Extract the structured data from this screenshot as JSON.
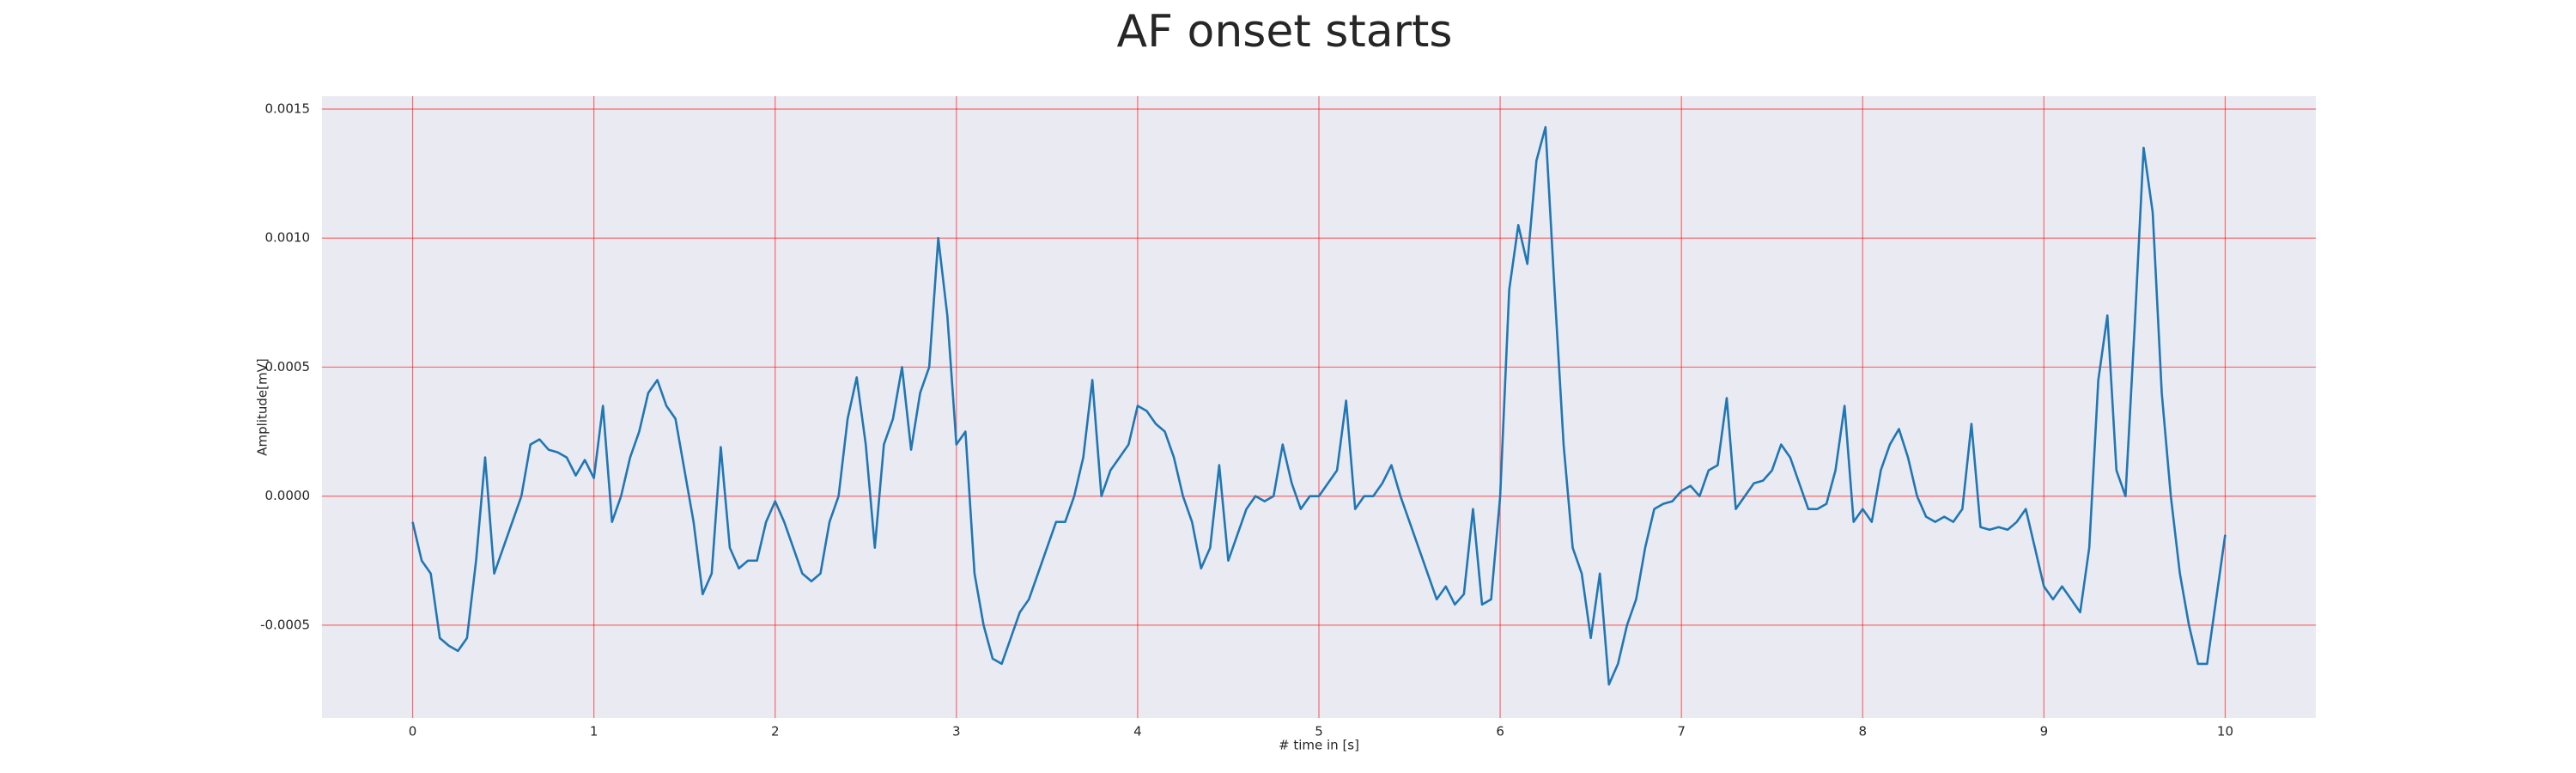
{
  "chart_data": {
    "type": "line",
    "title": "AF onset starts",
    "xlabel": "# time in [s]",
    "ylabel": "Amplitude[mV]",
    "x": [
      0,
      0.05,
      0.1,
      0.15,
      0.2,
      0.25,
      0.3,
      0.35,
      0.4,
      0.45,
      0.5,
      0.55,
      0.6,
      0.65,
      0.7,
      0.75,
      0.8,
      0.85,
      0.9,
      0.95,
      1,
      1.05,
      1.1,
      1.15,
      1.2,
      1.25,
      1.3,
      1.35,
      1.4,
      1.45,
      1.5,
      1.55,
      1.6,
      1.65,
      1.7,
      1.75,
      1.8,
      1.85,
      1.9,
      1.95,
      2,
      2.05,
      2.1,
      2.15,
      2.2,
      2.25,
      2.3,
      2.35,
      2.4,
      2.45,
      2.5,
      2.55,
      2.6,
      2.65,
      2.7,
      2.75,
      2.8,
      2.85,
      2.9,
      2.95,
      3,
      3.05,
      3.1,
      3.15,
      3.2,
      3.25,
      3.3,
      3.35,
      3.4,
      3.45,
      3.5,
      3.55,
      3.6,
      3.65,
      3.7,
      3.75,
      3.8,
      3.85,
      3.9,
      3.95,
      4,
      4.05,
      4.1,
      4.15,
      4.2,
      4.25,
      4.3,
      4.35,
      4.4,
      4.45,
      4.5,
      4.55,
      4.6,
      4.65,
      4.7,
      4.75,
      4.8,
      4.85,
      4.9,
      4.95,
      5,
      5.05,
      5.1,
      5.15,
      5.2,
      5.25,
      5.3,
      5.35,
      5.4,
      5.45,
      5.5,
      5.55,
      5.6,
      5.65,
      5.7,
      5.75,
      5.8,
      5.85,
      5.9,
      5.95,
      6,
      6.05,
      6.1,
      6.15,
      6.2,
      6.25,
      6.3,
      6.35,
      6.4,
      6.45,
      6.5,
      6.55,
      6.6,
      6.65,
      6.7,
      6.75,
      6.8,
      6.85,
      6.9,
      6.95,
      7,
      7.05,
      7.1,
      7.15,
      7.2,
      7.25,
      7.3,
      7.35,
      7.4,
      7.45,
      7.5,
      7.55,
      7.6,
      7.65,
      7.7,
      7.75,
      7.8,
      7.85,
      7.9,
      7.95,
      8,
      8.05,
      8.1,
      8.15,
      8.2,
      8.25,
      8.3,
      8.35,
      8.4,
      8.45,
      8.5,
      8.55,
      8.6,
      8.65,
      8.7,
      8.75,
      8.8,
      8.85,
      8.9,
      8.95,
      9,
      9.05,
      9.1,
      9.15,
      9.2,
      9.25,
      9.3,
      9.35,
      9.4,
      9.45,
      9.5,
      9.55,
      9.6,
      9.65,
      9.7,
      9.75,
      9.8,
      9.85,
      9.9,
      9.95,
      10
    ],
    "series": [
      {
        "color": "#1f77b4",
        "values": [
          -0.0001,
          -0.00025,
          -0.0003,
          -0.00055,
          -0.00058,
          -0.0006,
          -0.00055,
          -0.00025,
          0.00015,
          -0.0003,
          -0.0002,
          -0.0001,
          0,
          0.0002,
          0.00022,
          0.00018,
          0.00017,
          0.00015,
          8e-05,
          0.00014,
          7e-05,
          0.00035,
          -0.0001,
          0,
          0.00015,
          0.00025,
          0.0004,
          0.00045,
          0.00035,
          0.0003,
          0.0001,
          -0.0001,
          -0.00038,
          -0.0003,
          0.00019,
          -0.0002,
          -0.00028,
          -0.00025,
          -0.00025,
          -0.0001,
          -2e-05,
          -0.0001,
          -0.0002,
          -0.0003,
          -0.00033,
          -0.0003,
          -0.0001,
          0,
          0.0003,
          0.00046,
          0.0002,
          -0.0002,
          0.0002,
          0.0003,
          0.0005,
          0.00018,
          0.0004,
          0.0005,
          0.001,
          0.0007,
          0.0002,
          0.00025,
          -0.0003,
          -0.0005,
          -0.00063,
          -0.00065,
          -0.00055,
          -0.00045,
          -0.0004,
          -0.0003,
          -0.0002,
          -0.0001,
          -0.0001,
          0,
          0.00015,
          0.00045,
          0,
          0.0001,
          0.00015,
          0.0002,
          0.00035,
          0.00033,
          0.00028,
          0.00025,
          0.00015,
          0,
          -0.0001,
          -0.00028,
          -0.0002,
          0.00012,
          -0.00025,
          -0.00015,
          -5e-05,
          0,
          -2e-05,
          0,
          0.0002,
          5e-05,
          -5e-05,
          0,
          0,
          5e-05,
          0.0001,
          0.00037,
          -5e-05,
          0,
          0,
          5e-05,
          0.00012,
          0,
          -0.0001,
          -0.0002,
          -0.0003,
          -0.0004,
          -0.00035,
          -0.00042,
          -0.00038,
          -5e-05,
          -0.00042,
          -0.0004,
          0,
          0.0008,
          0.00105,
          0.0009,
          0.0013,
          0.00143,
          0.0008,
          0.0002,
          -0.0002,
          -0.0003,
          -0.00055,
          -0.0003,
          -0.00073,
          -0.00065,
          -0.0005,
          -0.0004,
          -0.0002,
          -5e-05,
          -3e-05,
          -2e-05,
          2e-05,
          4e-05,
          0,
          0.0001,
          0.00012,
          0.00038,
          -5e-05,
          0,
          5e-05,
          6e-05,
          0.0001,
          0.0002,
          0.00015,
          5e-05,
          -5e-05,
          -5e-05,
          -3e-05,
          0.0001,
          0.00035,
          -0.0001,
          -5e-05,
          -0.0001,
          0.0001,
          0.0002,
          0.00026,
          0.00015,
          0,
          -8e-05,
          -0.0001,
          -8e-05,
          -0.0001,
          -5e-05,
          0.00028,
          -0.00012,
          -0.00013,
          -0.00012,
          -0.00013,
          -0.0001,
          -5e-05,
          -0.0002,
          -0.00035,
          -0.0004,
          -0.00035,
          -0.0004,
          -0.00045,
          -0.0002,
          0.00045,
          0.0007,
          0.0001,
          0,
          0.00065,
          0.00135,
          0.0011,
          0.0004,
          0,
          -0.0003,
          -0.0005,
          -0.00065,
          -0.00065,
          -0.0004,
          -0.00015
        ]
      }
    ],
    "xlim": [
      -0.5,
      10.5
    ],
    "xticks": [
      0,
      1,
      2,
      3,
      4,
      5,
      6,
      7,
      8,
      9,
      10
    ],
    "ylim": [
      -0.00086,
      0.00155
    ],
    "yticks": [
      {
        "value": -0.0005,
        "label": "-0.0005"
      },
      {
        "value": 0,
        "label": "0.0000"
      },
      {
        "value": 0.0005,
        "label": "0.0005"
      },
      {
        "value": 0.001,
        "label": "0.0010"
      },
      {
        "value": 0.0015,
        "label": "0.0015"
      }
    ],
    "grid": true,
    "grid_color": "#ff0000"
  }
}
